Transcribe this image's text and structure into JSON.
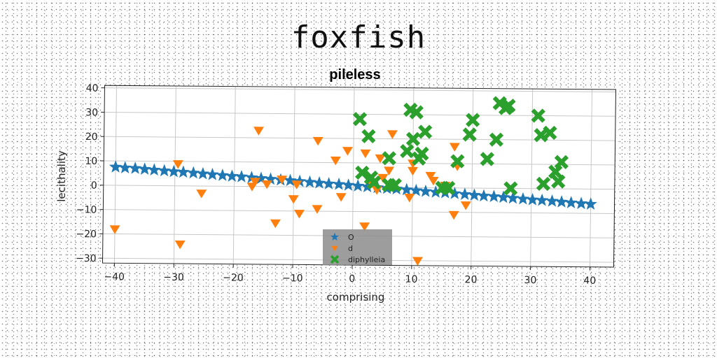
{
  "figure_title": "foxfish",
  "chart_data": {
    "type": "scatter",
    "title": "pileless",
    "xlabel": "comprising",
    "ylabel": "lecithality",
    "xlim": [
      -42,
      44
    ],
    "ylim": [
      -32,
      41
    ],
    "xticks": [
      -40,
      -30,
      -20,
      -10,
      0,
      10,
      20,
      30,
      40
    ],
    "yticks": [
      -30,
      -20,
      -10,
      0,
      10,
      20,
      30,
      40
    ],
    "grid": true,
    "legend": {
      "placement": "lower-center"
    },
    "series": [
      {
        "name": "O",
        "marker": "star",
        "color": "#1f77b4",
        "x": [
          -40,
          -38.4,
          -36.7,
          -35.1,
          -33.5,
          -31.8,
          -30.2,
          -28.6,
          -26.9,
          -25.3,
          -23.7,
          -22,
          -20.4,
          -18.8,
          -17.1,
          -15.5,
          -13.9,
          -12.2,
          -10.6,
          -9,
          -7.3,
          -5.7,
          -4.1,
          -2.4,
          -0.8,
          0.8,
          2.4,
          4.1,
          5.7,
          7.3,
          9,
          10.6,
          12.2,
          13.9,
          15.5,
          17.1,
          18.8,
          20.4,
          22,
          23.7,
          25.3,
          26.9,
          28.6,
          30.2,
          31.8,
          33.5,
          35.1,
          36.7,
          38.4,
          40
        ],
        "y": [
          7.5,
          7.2,
          7,
          6.7,
          6.4,
          6.1,
          5.8,
          5.6,
          5.3,
          5,
          4.7,
          4.4,
          4.1,
          3.9,
          3.6,
          3.3,
          3,
          2.7,
          2.5,
          2.2,
          1.9,
          1.6,
          1.3,
          1.1,
          0.8,
          0.5,
          0.2,
          -0.1,
          -0.4,
          -0.6,
          -0.9,
          -1.2,
          -1.5,
          -1.8,
          -2,
          -2.3,
          -2.6,
          -2.9,
          -3.2,
          -3.4,
          -3.7,
          -4,
          -4.3,
          -4.6,
          -4.8,
          -5.1,
          -5.4,
          -5.7,
          -6,
          -6.2
        ]
      },
      {
        "name": "d",
        "marker": "triangle-down",
        "color": "#ff7f0e",
        "x": [
          -40,
          -29.5,
          -29,
          -25.5,
          -16.5,
          -17,
          -16,
          -14.5,
          -13,
          -12,
          -10,
          -9.5,
          -9,
          -6,
          -6,
          -3,
          -2,
          -1,
          2,
          2,
          3,
          4,
          4.5,
          5,
          6,
          6.5,
          9.5,
          10,
          10,
          11,
          13,
          13.5,
          15.5,
          17,
          17,
          17.5,
          19
        ],
        "y": [
          -18,
          9,
          -24,
          -3,
          2,
          0,
          23,
          1,
          -15,
          3,
          -5,
          1,
          -11,
          19,
          -9,
          11,
          -4,
          15,
          -16,
          14,
          2,
          -1,
          12,
          4,
          7,
          22,
          -4,
          10,
          7,
          -30,
          5,
          3,
          1,
          17,
          -11,
          9,
          -7
        ]
      },
      {
        "name": "diphylleia",
        "marker": "x",
        "color": "#2ca02c",
        "x": [
          1,
          1.5,
          2.5,
          3,
          3.5,
          6,
          6,
          7,
          9,
          9.5,
          10,
          10.5,
          11,
          11.5,
          12,
          15,
          16,
          17.5,
          19.5,
          20,
          22.5,
          24,
          24.5,
          25.5,
          26,
          26.5,
          31,
          31.5,
          32,
          33,
          34,
          34.5,
          35
        ],
        "y": [
          28,
          6,
          21,
          4,
          2,
          12,
          1,
          1,
          15,
          32,
          20,
          31,
          12,
          14,
          23,
          0,
          0,
          11,
          22,
          28,
          12,
          20,
          35,
          33,
          34,
          0,
          30,
          22,
          2,
          23,
          7,
          3,
          11
        ]
      }
    ]
  }
}
